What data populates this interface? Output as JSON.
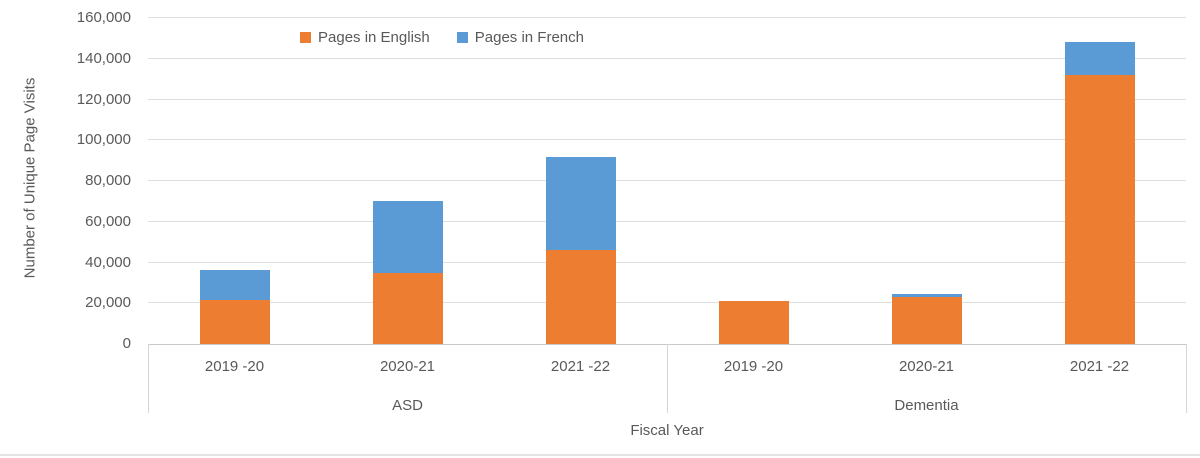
{
  "chart_data": {
    "type": "bar",
    "stacked": true,
    "title": "",
    "ylabel": "Number of Unique Page Visits",
    "xlabel": "Fiscal Year",
    "ylim": [
      0,
      160000
    ],
    "ytick_step": 20000,
    "yticks": [
      {
        "value": 0,
        "label": "0"
      },
      {
        "value": 20000,
        "label": "20,000"
      },
      {
        "value": 40000,
        "label": "40,000"
      },
      {
        "value": 60000,
        "label": "60,000"
      },
      {
        "value": 80000,
        "label": "80,000"
      },
      {
        "value": 100000,
        "label": "100,000"
      },
      {
        "value": 120000,
        "label": "120,000"
      },
      {
        "value": 140000,
        "label": "140,000"
      },
      {
        "value": 160000,
        "label": "160,000"
      }
    ],
    "grid": true,
    "legend_position": "top",
    "groups": [
      {
        "label": "ASD",
        "categories": [
          "2019 -20",
          "2020-21",
          "2021 -22"
        ]
      },
      {
        "label": "Dementia",
        "categories": [
          "2019 -20",
          "2020-21",
          "2021 -22"
        ]
      }
    ],
    "series": [
      {
        "name": "Pages in English",
        "color": "#ED7D31",
        "values": [
          21500,
          35000,
          46000,
          21000,
          23000,
          132000
        ]
      },
      {
        "name": "Pages in French",
        "color": "#5B9BD5",
        "values": [
          15000,
          35000,
          46000,
          0,
          1500,
          16000
        ]
      }
    ]
  }
}
